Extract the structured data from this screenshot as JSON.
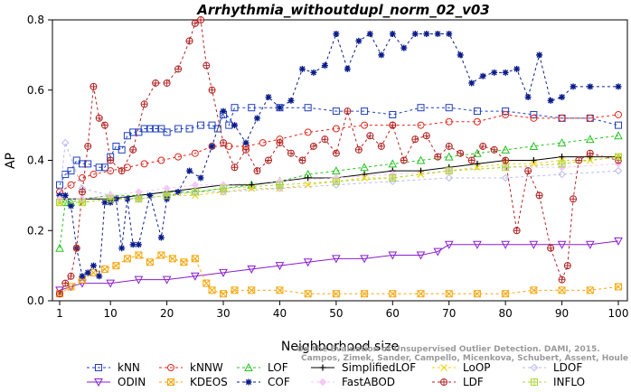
{
  "chart_data": {
    "type": "line",
    "title": "Arrhythmia_withoutdupl_norm_02_v03",
    "xlabel": "Neighborhood size",
    "ylabel": "AP",
    "xlim": [
      1,
      100
    ],
    "ylim": [
      0,
      0.8
    ],
    "xticks": [
      1,
      10,
      20,
      30,
      40,
      50,
      60,
      70,
      80,
      90,
      100
    ],
    "yticks": [
      0.0,
      0.2,
      0.4,
      0.6,
      0.8
    ],
    "xtick_labels": [
      "1",
      "10",
      "20",
      "30",
      "40",
      "50",
      "60",
      "70",
      "80",
      "90",
      "100"
    ],
    "ytick_labels": [
      "0.0",
      "0.2",
      "0.4",
      "0.6",
      "0.8"
    ],
    "grid": false,
    "legend_position": "bottom",
    "watermark": [
      "Campos, Zimek, Sander, Campello, Micenkova, Schubert, Assent, Houle",
      "On the Evaluation of Unsupervised Outlier Detection. DAMI, 2015."
    ],
    "series": [
      {
        "name": "kNN",
        "color": "#1f3fbf",
        "marker": "square",
        "dash": "3,3",
        "x": [
          1,
          2,
          3,
          4,
          5,
          6,
          8,
          9,
          10,
          11,
          12,
          13,
          14,
          15,
          16,
          17,
          18,
          19,
          20,
          22,
          24,
          26,
          28,
          29,
          30,
          31,
          32,
          35,
          40,
          45,
          50,
          55,
          60,
          65,
          70,
          75,
          80,
          85,
          90,
          95,
          100
        ],
        "values": [
          0.33,
          0.36,
          0.37,
          0.4,
          0.39,
          0.39,
          0.38,
          0.38,
          0.41,
          0.44,
          0.43,
          0.47,
          0.48,
          0.48,
          0.49,
          0.49,
          0.49,
          0.49,
          0.48,
          0.49,
          0.49,
          0.5,
          0.5,
          0.49,
          0.53,
          0.5,
          0.55,
          0.55,
          0.55,
          0.55,
          0.54,
          0.54,
          0.53,
          0.55,
          0.55,
          0.54,
          0.54,
          0.53,
          0.52,
          0.52,
          0.5
        ]
      },
      {
        "name": "kNNW",
        "color": "#e0281c",
        "marker": "circle",
        "dash": "3,3",
        "x": [
          1,
          3,
          5,
          7,
          10,
          13,
          16,
          19,
          22,
          25,
          28,
          31,
          34,
          37,
          40,
          45,
          50,
          55,
          60,
          65,
          70,
          75,
          80,
          85,
          90,
          95,
          100
        ],
        "values": [
          0.31,
          0.33,
          0.35,
          0.36,
          0.37,
          0.38,
          0.39,
          0.4,
          0.41,
          0.42,
          0.44,
          0.44,
          0.44,
          0.45,
          0.46,
          0.48,
          0.49,
          0.5,
          0.5,
          0.5,
          0.51,
          0.51,
          0.53,
          0.52,
          0.52,
          0.52,
          0.53
        ]
      },
      {
        "name": "LOF",
        "color": "#22c41c",
        "marker": "triangle",
        "dash": "3,3",
        "x": [
          1,
          2,
          3,
          5,
          10,
          15,
          20,
          25,
          30,
          35,
          40,
          45,
          50,
          55,
          60,
          65,
          70,
          75,
          80,
          85,
          90,
          95,
          100
        ],
        "values": [
          0.15,
          0.28,
          0.28,
          0.29,
          0.3,
          0.3,
          0.31,
          0.31,
          0.32,
          0.33,
          0.34,
          0.36,
          0.37,
          0.38,
          0.39,
          0.4,
          0.41,
          0.42,
          0.43,
          0.44,
          0.45,
          0.46,
          0.47
        ]
      },
      {
        "name": "SimplifiedLOF",
        "color": "#000000",
        "marker": "plus",
        "dash": "",
        "x": [
          1,
          5,
          10,
          15,
          20,
          25,
          30,
          35,
          40,
          45,
          50,
          55,
          60,
          65,
          70,
          75,
          80,
          85,
          90,
          95,
          100
        ],
        "values": [
          0.29,
          0.29,
          0.29,
          0.3,
          0.31,
          0.32,
          0.33,
          0.33,
          0.34,
          0.35,
          0.35,
          0.36,
          0.37,
          0.37,
          0.38,
          0.39,
          0.4,
          0.4,
          0.41,
          0.41,
          0.41
        ]
      },
      {
        "name": "LoOP",
        "color": "#f2d20d",
        "marker": "cross",
        "dash": "3,3",
        "x": [
          1,
          5,
          10,
          15,
          20,
          25,
          30,
          35,
          40,
          45,
          50,
          55,
          60,
          65,
          70,
          75,
          80,
          85,
          90,
          95,
          100
        ],
        "values": [
          0.28,
          0.28,
          0.29,
          0.29,
          0.3,
          0.3,
          0.31,
          0.32,
          0.32,
          0.33,
          0.34,
          0.35,
          0.35,
          0.36,
          0.37,
          0.38,
          0.39,
          0.39,
          0.4,
          0.4,
          0.41
        ]
      },
      {
        "name": "LDOF",
        "color": "#b9b9f0",
        "marker": "diamond",
        "dash": "3,3",
        "x": [
          1,
          2,
          5,
          10,
          15,
          20,
          25,
          30,
          40,
          50,
          60,
          70,
          80,
          90,
          100
        ],
        "values": [
          0.3,
          0.45,
          0.32,
          0.3,
          0.29,
          0.3,
          0.31,
          0.31,
          0.32,
          0.33,
          0.34,
          0.35,
          0.35,
          0.36,
          0.37
        ]
      },
      {
        "name": "ODIN",
        "color": "#8a1ccf",
        "marker": "triangle-down",
        "dash": "",
        "x": [
          1,
          3,
          5,
          10,
          15,
          20,
          25,
          30,
          35,
          40,
          45,
          50,
          55,
          60,
          65,
          68,
          70,
          75,
          80,
          85,
          90,
          95,
          100
        ],
        "values": [
          0.03,
          0.04,
          0.05,
          0.05,
          0.06,
          0.06,
          0.07,
          0.08,
          0.09,
          0.1,
          0.11,
          0.12,
          0.12,
          0.13,
          0.13,
          0.14,
          0.16,
          0.16,
          0.16,
          0.16,
          0.16,
          0.16,
          0.17
        ]
      },
      {
        "name": "KDEOS",
        "color": "#f5a60a",
        "marker": "square-x",
        "dash": "3,3",
        "x": [
          1,
          3,
          5,
          7,
          9,
          11,
          13,
          15,
          17,
          19,
          21,
          23,
          25,
          27,
          28,
          30,
          32,
          35,
          40,
          45,
          50,
          55,
          60,
          65,
          70,
          75,
          80,
          85,
          90,
          95,
          100
        ],
        "values": [
          0.02,
          0.04,
          0.06,
          0.08,
          0.09,
          0.1,
          0.12,
          0.13,
          0.11,
          0.13,
          0.12,
          0.11,
          0.12,
          0.05,
          0.03,
          0.02,
          0.03,
          0.03,
          0.03,
          0.02,
          0.02,
          0.02,
          0.02,
          0.02,
          0.02,
          0.02,
          0.02,
          0.03,
          0.03,
          0.03,
          0.04
        ]
      },
      {
        "name": "COF",
        "color": "#0a1c8a",
        "marker": "asterisk",
        "dash": "3,3",
        "x": [
          1,
          2,
          3,
          4,
          5,
          6,
          7,
          8,
          9,
          10,
          11,
          12,
          13,
          14,
          15,
          17,
          19,
          20,
          22,
          24,
          26,
          28,
          30,
          32,
          34,
          36,
          38,
          40,
          42,
          44,
          46,
          48,
          50,
          52,
          54,
          56,
          58,
          60,
          62,
          64,
          66,
          68,
          70,
          72,
          74,
          76,
          78,
          80,
          82,
          84,
          86,
          88,
          90,
          92,
          95,
          100
        ],
        "values": [
          0.3,
          0.3,
          0.27,
          0.15,
          0.07,
          0.08,
          0.1,
          0.07,
          0.28,
          0.28,
          0.29,
          0.15,
          0.29,
          0.16,
          0.16,
          0.3,
          0.18,
          0.29,
          0.31,
          0.37,
          0.35,
          0.44,
          0.54,
          0.5,
          0.45,
          0.52,
          0.58,
          0.55,
          0.57,
          0.66,
          0.65,
          0.67,
          0.76,
          0.66,
          0.74,
          0.76,
          0.7,
          0.76,
          0.72,
          0.76,
          0.76,
          0.76,
          0.76,
          0.7,
          0.62,
          0.64,
          0.65,
          0.65,
          0.66,
          0.58,
          0.7,
          0.57,
          0.58,
          0.61,
          0.61,
          0.61
        ]
      },
      {
        "name": "FastABOD",
        "color": "#f5c8f5",
        "marker": "diamond-filled",
        "dash": "3,3",
        "x": [
          1,
          5,
          10,
          15,
          20,
          25,
          30,
          40,
          50,
          60,
          70,
          80,
          90,
          100
        ],
        "values": [
          0.29,
          0.29,
          0.3,
          0.31,
          0.32,
          0.33,
          0.33,
          0.34,
          0.35,
          0.36,
          0.37,
          0.38,
          0.38,
          0.39
        ]
      },
      {
        "name": "LDF",
        "color": "#b22222",
        "marker": "circle-plus",
        "dash": "3,3",
        "x": [
          1,
          2,
          3,
          4,
          5,
          6,
          7,
          8,
          9,
          10,
          12,
          14,
          16,
          18,
          20,
          22,
          24,
          25,
          26,
          27,
          28,
          30,
          32,
          34,
          36,
          38,
          40,
          42,
          44,
          46,
          48,
          50,
          52,
          54,
          56,
          58,
          60,
          62,
          64,
          66,
          68,
          70,
          72,
          74,
          76,
          78,
          80,
          82,
          84,
          86,
          88,
          90,
          91,
          92,
          93,
          95,
          100
        ],
        "values": [
          0.02,
          0.05,
          0.07,
          0.15,
          0.31,
          0.44,
          0.61,
          0.52,
          0.5,
          0.4,
          0.37,
          0.43,
          0.56,
          0.62,
          0.62,
          0.66,
          0.74,
          0.79,
          0.8,
          0.67,
          0.6,
          0.45,
          0.38,
          0.43,
          0.37,
          0.4,
          0.45,
          0.42,
          0.4,
          0.44,
          0.46,
          0.42,
          0.54,
          0.43,
          0.47,
          0.44,
          0.5,
          0.4,
          0.46,
          0.47,
          0.41,
          0.44,
          0.42,
          0.4,
          0.44,
          0.43,
          0.4,
          0.2,
          0.37,
          0.3,
          0.15,
          0.06,
          0.1,
          0.29,
          0.4,
          0.42,
          0.4
        ]
      },
      {
        "name": "INFLO",
        "color": "#a8d838",
        "marker": "square-cross",
        "dash": "3,3",
        "x": [
          1,
          5,
          10,
          15,
          20,
          25,
          30,
          40,
          50,
          60,
          70,
          80,
          90,
          100
        ],
        "values": [
          0.28,
          0.28,
          0.29,
          0.29,
          0.3,
          0.31,
          0.32,
          0.33,
          0.34,
          0.35,
          0.37,
          0.38,
          0.39,
          0.41
        ]
      }
    ]
  }
}
